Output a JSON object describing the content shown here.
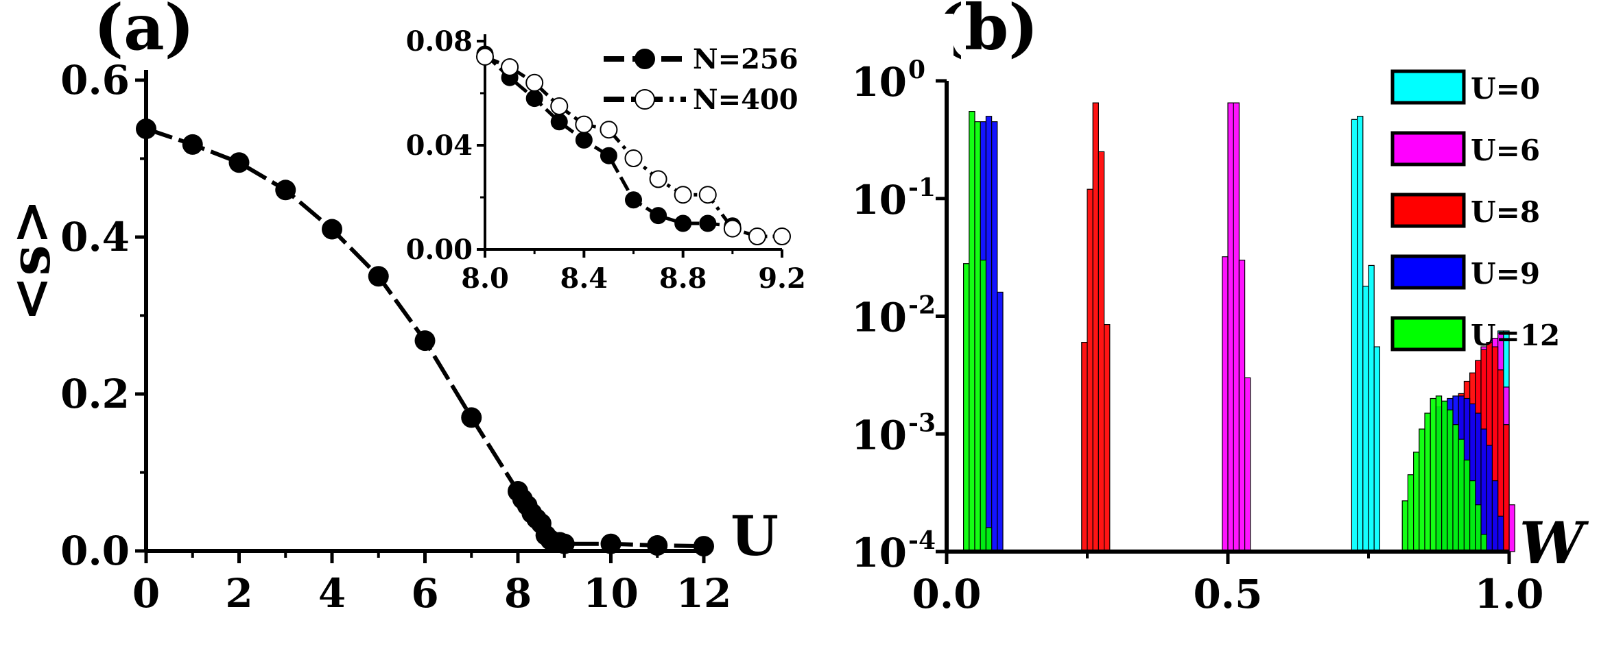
{
  "figure": {
    "panel_a_label": "(a)",
    "panel_b_label": "(b)"
  },
  "chart_data": [
    {
      "panel": "(a)",
      "type": "line",
      "xlabel": "U",
      "ylabel": "<s>",
      "xlim": [
        0,
        12
      ],
      "ylim": [
        0,
        0.6
      ],
      "xticks": [
        "0",
        "2",
        "4",
        "6",
        "8",
        "10",
        "12"
      ],
      "yticks": [
        "0.0",
        "0.2",
        "0.4",
        "0.6"
      ],
      "series": [
        {
          "x": [
            0,
            1,
            2,
            3,
            4,
            5,
            6,
            7,
            8.0,
            8.1,
            8.2,
            8.3,
            8.4,
            8.5,
            8.6,
            8.7,
            8.8,
            8.9,
            9.0,
            10,
            11,
            12
          ],
          "y": [
            0.538,
            0.518,
            0.495,
            0.46,
            0.41,
            0.35,
            0.268,
            0.17,
            0.076,
            0.066,
            0.058,
            0.048,
            0.041,
            0.035,
            0.02,
            0.014,
            0.011,
            0.011,
            0.009,
            0.009,
            0.007,
            0.006
          ]
        }
      ],
      "inset": {
        "type": "line",
        "xlim": [
          8.0,
          9.2
        ],
        "ylim": [
          0,
          0.08
        ],
        "xticks": [
          "8.0",
          "8.4",
          "8.8",
          "9.2"
        ],
        "yticks": [
          "0.00",
          "0.04",
          "0.08"
        ],
        "legend_position": "top-right",
        "series": [
          {
            "name": "N=256",
            "marker": "filled-circle",
            "line": "dashed",
            "x": [
              8.0,
              8.1,
              8.2,
              8.3,
              8.4,
              8.5,
              8.6,
              8.7,
              8.8,
              8.9,
              9.0
            ],
            "y": [
              0.075,
              0.066,
              0.058,
              0.049,
              0.042,
              0.036,
              0.019,
              0.013,
              0.01,
              0.01,
              0.009
            ]
          },
          {
            "name": "N=400",
            "marker": "open-circle",
            "line": "dash-dot",
            "x": [
              8.0,
              8.1,
              8.2,
              8.3,
              8.4,
              8.5,
              8.6,
              8.7,
              8.8,
              8.9,
              9.0,
              9.1,
              9.2
            ],
            "y": [
              0.074,
              0.07,
              0.064,
              0.055,
              0.048,
              0.046,
              0.035,
              0.027,
              0.021,
              0.021,
              0.008,
              0.005,
              0.005
            ]
          }
        ]
      }
    },
    {
      "panel": "(b)",
      "type": "bar",
      "xlabel": "W",
      "xlim": [
        0,
        1
      ],
      "ylim_log10": [
        -4,
        0
      ],
      "log_scale_y": true,
      "xticks": [
        "0.0",
        "0.5",
        "1.0"
      ],
      "ytick_base": "10",
      "ytick_exponents": [
        "0",
        "-1",
        "-2",
        "-3",
        "-4"
      ],
      "bin_width": 0.01,
      "legend_position": "top-right",
      "series": [
        {
          "name": "U=0",
          "color": "#00ffff",
          "bins": [
            {
              "x": 0.725,
              "y": 0.47
            },
            {
              "x": 0.735,
              "y": 0.5
            },
            {
              "x": 0.745,
              "y": 0.018
            },
            {
              "x": 0.755,
              "y": 0.027
            },
            {
              "x": 0.765,
              "y": 0.0055
            },
            {
              "x": 0.985,
              "y": 0.0075
            },
            {
              "x": 0.995,
              "y": 0.0075
            }
          ]
        },
        {
          "name": "U=6",
          "color": "#ff00ff",
          "bins": [
            {
              "x": 0.495,
              "y": 0.032
            },
            {
              "x": 0.505,
              "y": 0.65
            },
            {
              "x": 0.515,
              "y": 0.65
            },
            {
              "x": 0.525,
              "y": 0.03
            },
            {
              "x": 0.535,
              "y": 0.003
            },
            {
              "x": 0.945,
              "y": 0.0042
            },
            {
              "x": 0.955,
              "y": 0.0055
            },
            {
              "x": 0.965,
              "y": 0.006
            },
            {
              "x": 0.975,
              "y": 0.0065
            },
            {
              "x": 0.985,
              "y": 0.0072
            },
            {
              "x": 0.995,
              "y": 0.0025
            },
            {
              "x": 1.005,
              "y": 0.00025
            }
          ]
        },
        {
          "name": "U=8",
          "color": "#ff0000",
          "bins": [
            {
              "x": 0.245,
              "y": 0.006
            },
            {
              "x": 0.255,
              "y": 0.12
            },
            {
              "x": 0.265,
              "y": 0.65
            },
            {
              "x": 0.275,
              "y": 0.25
            },
            {
              "x": 0.285,
              "y": 0.0085
            },
            {
              "x": 0.915,
              "y": 0.0022
            },
            {
              "x": 0.925,
              "y": 0.0028
            },
            {
              "x": 0.935,
              "y": 0.0033
            },
            {
              "x": 0.945,
              "y": 0.0042
            },
            {
              "x": 0.955,
              "y": 0.0052
            },
            {
              "x": 0.965,
              "y": 0.006
            },
            {
              "x": 0.975,
              "y": 0.0055
            },
            {
              "x": 0.985,
              "y": 0.0035
            },
            {
              "x": 0.995,
              "y": 0.0012
            }
          ]
        },
        {
          "name": "U=9",
          "color": "#0000ff",
          "bins": [
            {
              "x": 0.065,
              "y": 0.45
            },
            {
              "x": 0.075,
              "y": 0.5
            },
            {
              "x": 0.085,
              "y": 0.45
            },
            {
              "x": 0.095,
              "y": 0.016
            },
            {
              "x": 0.875,
              "y": 0.0017
            },
            {
              "x": 0.885,
              "y": 0.0019
            },
            {
              "x": 0.895,
              "y": 0.002
            },
            {
              "x": 0.905,
              "y": 0.0021
            },
            {
              "x": 0.915,
              "y": 0.0021
            },
            {
              "x": 0.925,
              "y": 0.002
            },
            {
              "x": 0.935,
              "y": 0.0018
            },
            {
              "x": 0.945,
              "y": 0.0015
            },
            {
              "x": 0.955,
              "y": 0.0011
            },
            {
              "x": 0.965,
              "y": 0.0008
            },
            {
              "x": 0.975,
              "y": 0.0004
            },
            {
              "x": 0.985,
              "y": 0.0002
            }
          ]
        },
        {
          "name": "U=12",
          "color": "#00ff00",
          "bins": [
            {
              "x": 0.035,
              "y": 0.028
            },
            {
              "x": 0.045,
              "y": 0.55
            },
            {
              "x": 0.055,
              "y": 0.45
            },
            {
              "x": 0.065,
              "y": 0.03
            },
            {
              "x": 0.075,
              "y": 0.00016
            },
            {
              "x": 0.815,
              "y": 0.00027
            },
            {
              "x": 0.825,
              "y": 0.00045
            },
            {
              "x": 0.835,
              "y": 0.0007
            },
            {
              "x": 0.845,
              "y": 0.0011
            },
            {
              "x": 0.855,
              "y": 0.0015
            },
            {
              "x": 0.865,
              "y": 0.002
            },
            {
              "x": 0.875,
              "y": 0.0021
            },
            {
              "x": 0.885,
              "y": 0.0019
            },
            {
              "x": 0.895,
              "y": 0.0016
            },
            {
              "x": 0.905,
              "y": 0.0012
            },
            {
              "x": 0.915,
              "y": 0.0009
            },
            {
              "x": 0.925,
              "y": 0.0006
            },
            {
              "x": 0.935,
              "y": 0.0004
            },
            {
              "x": 0.945,
              "y": 0.00025
            },
            {
              "x": 0.955,
              "y": 0.00014
            }
          ]
        }
      ]
    }
  ]
}
